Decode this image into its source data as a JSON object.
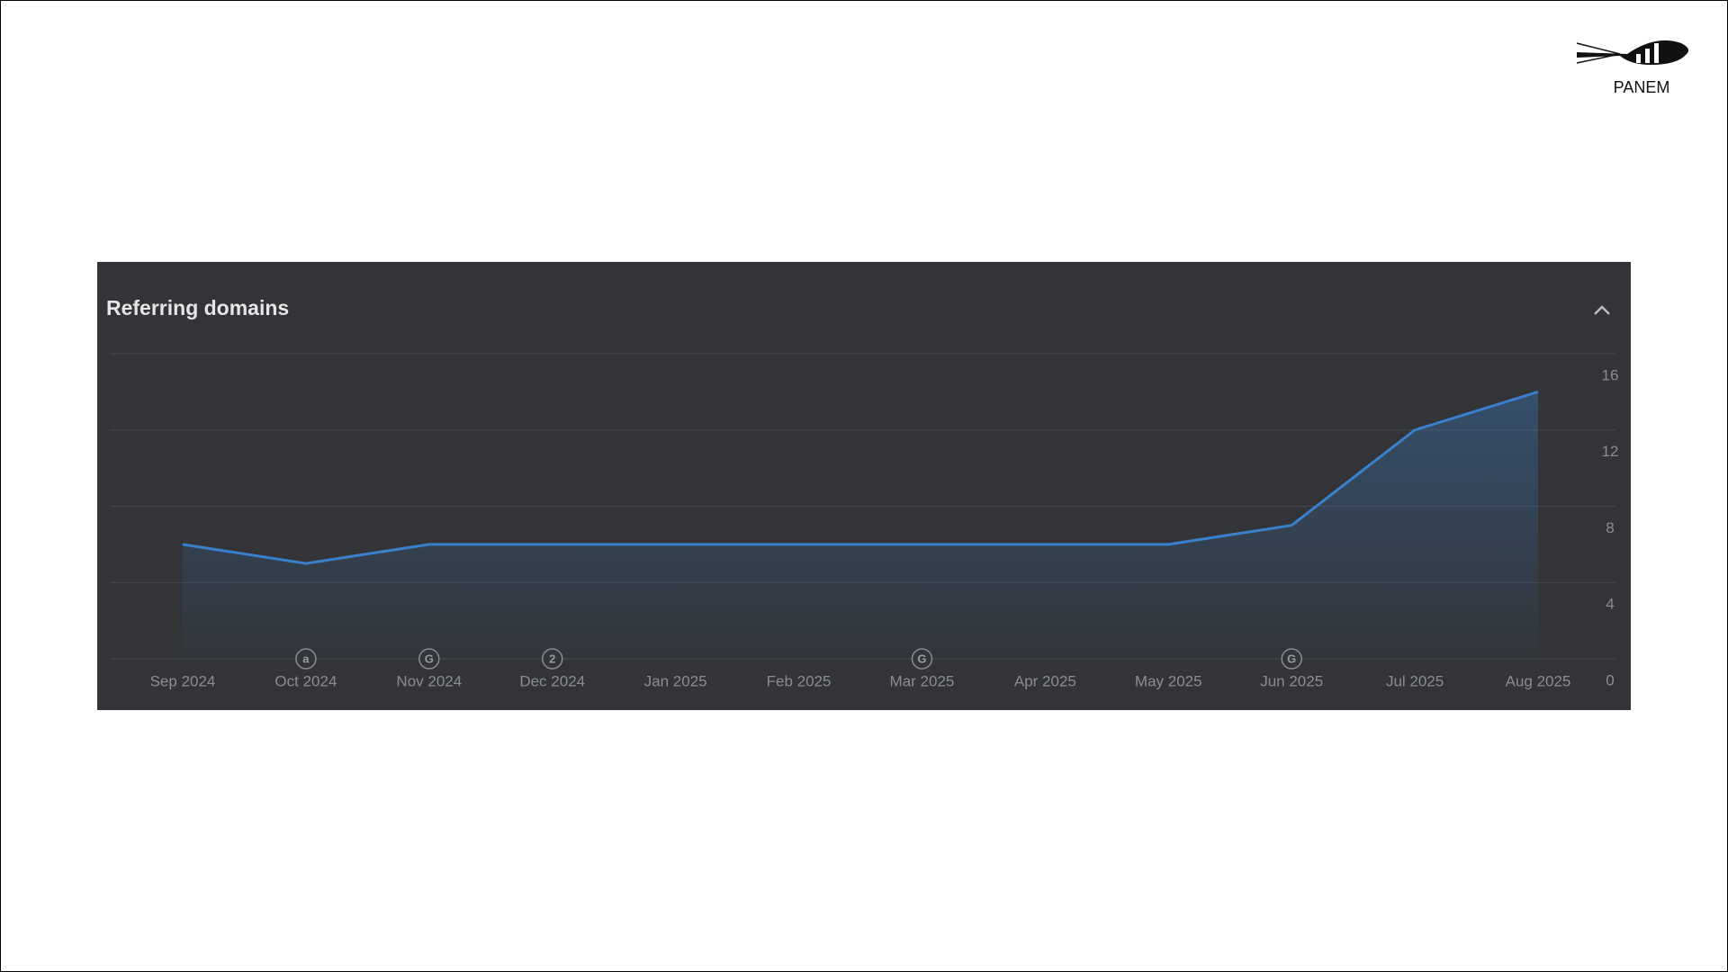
{
  "logo": "PANEM",
  "chart_data": {
    "type": "line",
    "title": "Referring domains",
    "categories": [
      "Sep 2024",
      "Oct 2024",
      "Nov 2024",
      "Dec 2024",
      "Jan 2025",
      "Feb 2025",
      "Mar 2025",
      "Apr 2025",
      "May 2025",
      "Jun 2025",
      "Jul 2025",
      "Aug 2025"
    ],
    "series": [
      {
        "name": "Referring domains",
        "color": "#3b80cc",
        "values": [
          6,
          5,
          6,
          6,
          6,
          6,
          6,
          6,
          6,
          7,
          12,
          14
        ]
      }
    ],
    "event_markers": [
      null,
      "a",
      "G",
      "2",
      null,
      null,
      "G",
      null,
      null,
      "G",
      null,
      null
    ],
    "ylim": [
      0,
      16
    ],
    "yticks": [
      0,
      4,
      8,
      12,
      16
    ],
    "grid": true
  }
}
